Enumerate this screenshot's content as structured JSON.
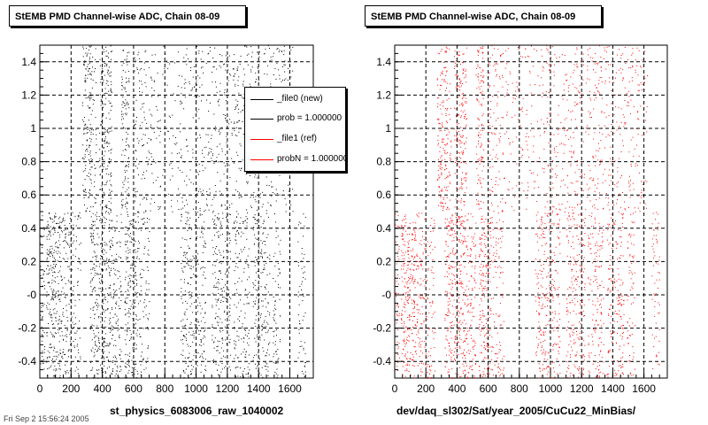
{
  "chart_data": [
    {
      "type": "scatter",
      "title": "StEMB PMD Channel-wise ADC, Chain 08-09",
      "xlabel": "st_physics_6083006_raw_1040002",
      "ylabel": "",
      "xlim": [
        0,
        1750
      ],
      "ylim": [
        -0.5,
        1.5
      ],
      "xticks": [
        "0",
        "200",
        "400",
        "600",
        "800",
        "1000",
        "1200",
        "1400",
        "1600"
      ],
      "yticks": [
        "-0.4",
        "-0.2",
        "-0",
        "0.2",
        "0.4",
        "0.6",
        "0.8",
        "1",
        "1.2",
        "1.4"
      ],
      "grid": true,
      "series": [
        {
          "name": "_file0 (new)",
          "color": "#000000"
        },
        {
          "name": "_file1 (ref)",
          "color": "#ff0000"
        }
      ],
      "legend": {
        "position": "top-right",
        "entries": [
          {
            "label": "_file0 (new)",
            "color": "#000000"
          },
          {
            "label": "prob = 1.000000",
            "color": "#000000"
          },
          {
            "label": "_file1 (ref)",
            "color": "#ff0000"
          },
          {
            "label": "probN = 1.000000",
            "color": "#ff0000"
          }
        ]
      }
    },
    {
      "type": "scatter",
      "title": "StEMB PMD Channel-wise ADC, Chain 08-09",
      "xlabel": "dev/daq_sl302/Sat/year_2005/CuCu22_MinBias/",
      "ylabel": "",
      "xlim": [
        0,
        1750
      ],
      "ylim": [
        -0.5,
        1.5
      ],
      "xticks": [
        "0",
        "200",
        "400",
        "600",
        "800",
        "1000",
        "1200",
        "1400",
        "1600"
      ],
      "yticks": [
        "-0.4",
        "-0.2",
        "-0",
        "0.2",
        "0.4",
        "0.6",
        "0.8",
        "1",
        "1.2",
        "1.4"
      ],
      "grid": true,
      "series": [
        {
          "name": "",
          "color": "#ff0000"
        }
      ]
    }
  ],
  "colors": {
    "new": "#000000",
    "ref": "#ff0000"
  },
  "footer": "Fri Sep 2 15:56:24 2005"
}
